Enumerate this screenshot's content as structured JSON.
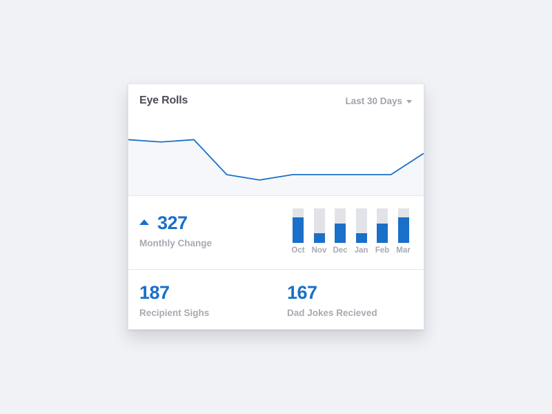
{
  "card": {
    "title": "Eye Rolls",
    "range_label": "Last 30 Days",
    "colors": {
      "accent": "#1a6fc9",
      "muted_text": "#a7aab1",
      "track": "#e2e3e8",
      "area_fill": "#f6f7fa"
    }
  },
  "chart_data": [
    {
      "type": "area",
      "values": [
        12,
        13.5,
        12,
        35,
        38.5,
        35,
        35,
        35,
        35,
        21
      ],
      "ylim": [
        0,
        50
      ],
      "title": "",
      "xlabel": "",
      "ylabel": ""
    },
    {
      "type": "bar",
      "categories": [
        "Oct",
        "Nov",
        "Dec",
        "Jan",
        "Feb",
        "Mar"
      ],
      "values": [
        0.74,
        0.28,
        0.56,
        0.28,
        0.56,
        0.74
      ],
      "ylim": [
        0,
        1
      ],
      "title": "",
      "xlabel": "",
      "ylabel": ""
    }
  ],
  "stats": {
    "monthly_change": {
      "value": "327",
      "label": "Monthly Change",
      "icon": "up-triangle-icon"
    },
    "recipient_sighs": {
      "value": "187",
      "label": "Recipient Sighs"
    },
    "dad_jokes": {
      "value": "167",
      "label": "Dad Jokes Recieved"
    }
  }
}
